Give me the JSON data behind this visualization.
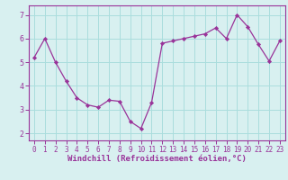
{
  "x": [
    0,
    1,
    2,
    3,
    4,
    5,
    6,
    7,
    8,
    9,
    10,
    11,
    12,
    13,
    14,
    15,
    16,
    17,
    18,
    19,
    20,
    21,
    22,
    23
  ],
  "y": [
    5.2,
    6.0,
    5.0,
    4.2,
    3.5,
    3.2,
    3.1,
    3.4,
    3.35,
    2.5,
    2.2,
    3.3,
    5.8,
    5.9,
    6.0,
    6.1,
    6.2,
    6.45,
    6.0,
    7.0,
    6.5,
    5.75,
    5.05,
    5.9
  ],
  "line_color": "#993399",
  "marker_color": "#993399",
  "bg_color": "#d8f0f0",
  "grid_color": "#aadddd",
  "spine_color": "#993399",
  "tick_color": "#993399",
  "label_color": "#993399",
  "xlabel": "Windchill (Refroidissement éolien,°C)",
  "ylim": [
    1.7,
    7.4
  ],
  "xlim": [
    -0.5,
    23.5
  ],
  "yticks": [
    2,
    3,
    4,
    5,
    6,
    7
  ],
  "xticks": [
    0,
    1,
    2,
    3,
    4,
    5,
    6,
    7,
    8,
    9,
    10,
    11,
    12,
    13,
    14,
    15,
    16,
    17,
    18,
    19,
    20,
    21,
    22,
    23
  ],
  "tick_fontsize": 5.5,
  "xlabel_fontsize": 6.5
}
